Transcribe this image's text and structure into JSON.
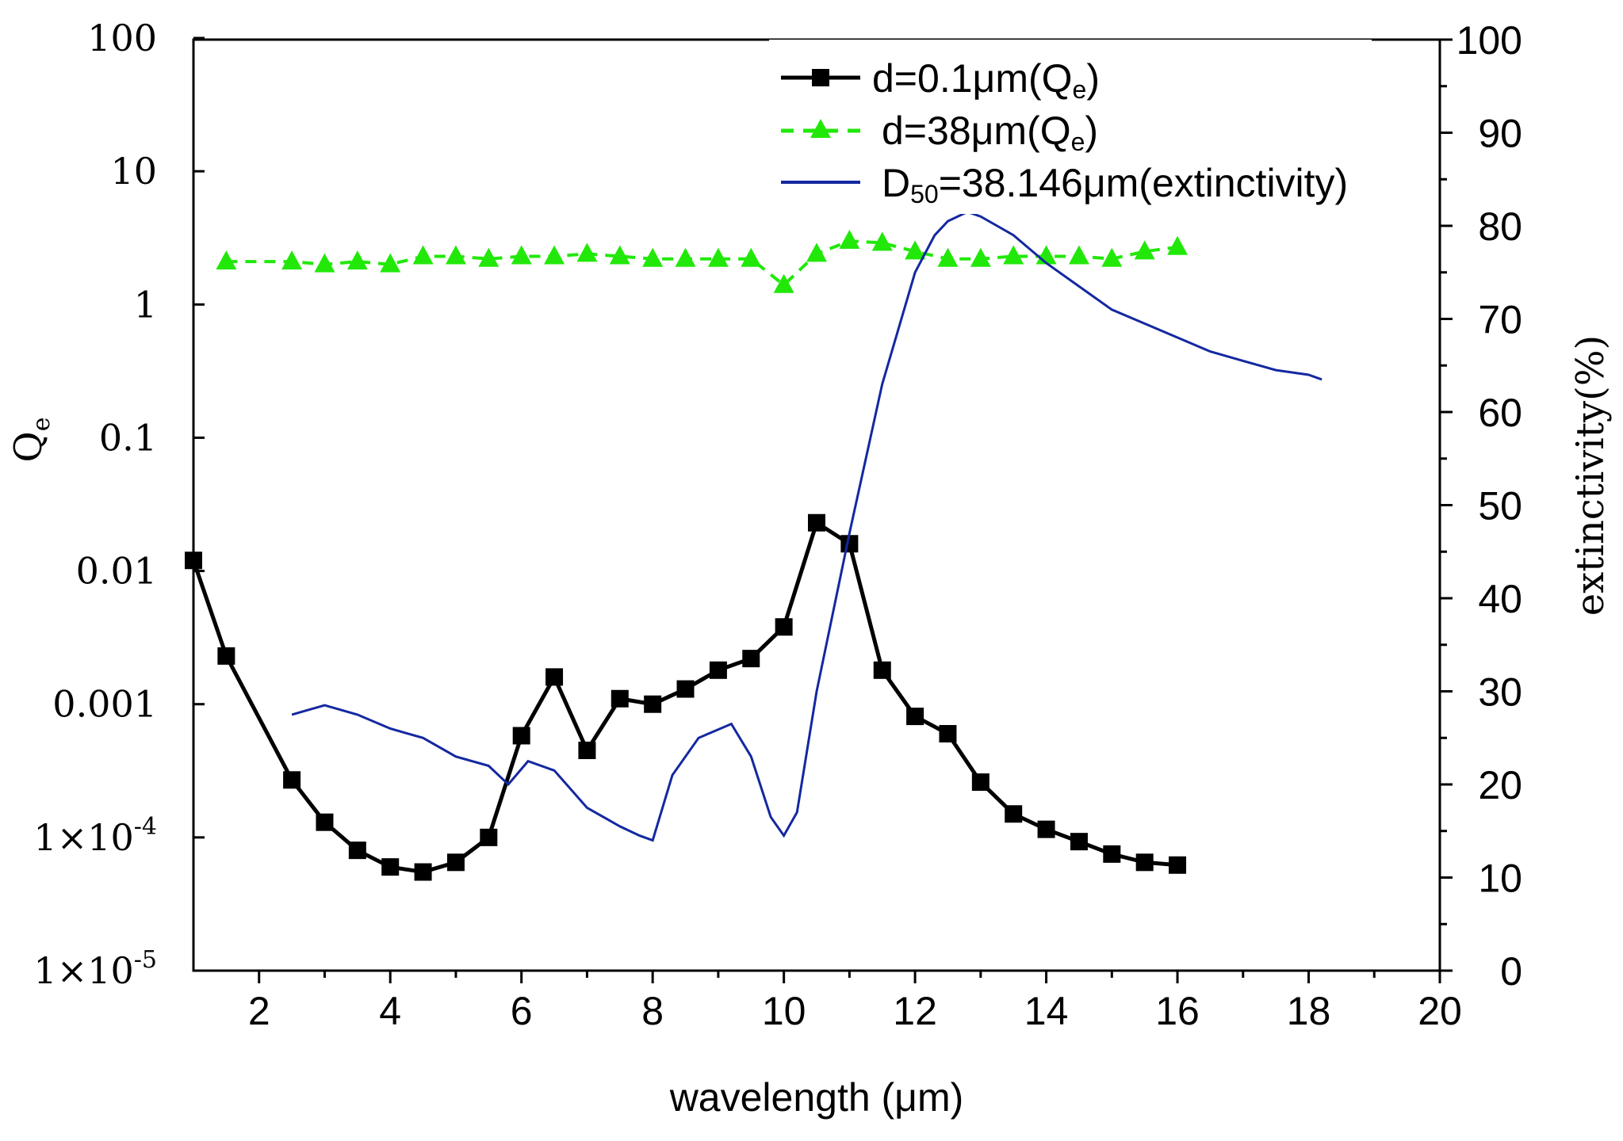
{
  "chart_data": {
    "type": "line",
    "title": "",
    "xlabel": "wavelength (μm)",
    "ylabel_left": "Q",
    "ylabel_left_subscript": "e",
    "ylabel_right": "extinctivity(%)",
    "xlim": [
      1,
      20
    ],
    "ylim_left": [
      1e-05,
      100
    ],
    "ylim_right": [
      0,
      100
    ],
    "y_left_scale": "log",
    "x_ticks": [
      2,
      4,
      6,
      8,
      10,
      12,
      14,
      16,
      18,
      20
    ],
    "x_tick_labels": [
      "2",
      "4",
      "6",
      "8",
      "10",
      "12",
      "14",
      "16",
      "18",
      "20"
    ],
    "y_left_ticks": [
      1e-05,
      0.0001,
      0.001,
      0.01,
      0.1,
      1,
      10,
      100
    ],
    "y_left_tick_labels": [
      "1×10",
      "1×10",
      "0.001",
      "0.01",
      "0.1",
      "1",
      "10",
      "100"
    ],
    "y_left_tick_superscripts": [
      "-5",
      "-4",
      "",
      "",
      "",
      "",
      "",
      ""
    ],
    "y_right_ticks": [
      0,
      10,
      20,
      30,
      40,
      50,
      60,
      70,
      80,
      90,
      100
    ],
    "y_right_tick_labels": [
      "0",
      "10",
      "20",
      "30",
      "40",
      "50",
      "60",
      "70",
      "80",
      "90",
      "100"
    ],
    "legend_position": "top-right",
    "series": [
      {
        "name": "d=0.1μm(Q",
        "name_subscript": "e",
        "name_suffix": ")",
        "axis": "left",
        "color": "#000000",
        "marker": "square",
        "x": [
          1,
          1.5,
          2.5,
          3,
          3.5,
          4,
          4.5,
          5,
          5.5,
          6,
          6.5,
          7,
          7.5,
          8,
          8.5,
          9,
          9.5,
          10,
          10.5,
          11,
          11.5,
          12,
          12.5,
          13,
          13.5,
          14,
          14.5,
          15,
          15.5,
          16
        ],
        "values": [
          0.012,
          0.0023,
          0.00027,
          0.00013,
          8e-05,
          6e-05,
          5.5e-05,
          6.5e-05,
          0.0001,
          0.00058,
          0.0016,
          0.00045,
          0.0011,
          0.001,
          0.0013,
          0.0018,
          0.0022,
          0.0038,
          0.023,
          0.016,
          0.0018,
          0.00081,
          0.0006,
          0.00026,
          0.00015,
          0.000115,
          9.3e-05,
          7.5e-05,
          6.5e-05,
          6.2e-05
        ]
      },
      {
        "name": "d=38μm(Q",
        "name_subscript": "e",
        "name_suffix": ")",
        "axis": "left",
        "color": "#22e80a",
        "marker": "triangle",
        "x": [
          1.5,
          2.5,
          3,
          3.5,
          4,
          4.5,
          5,
          5.5,
          6,
          6.5,
          7,
          7.5,
          8,
          8.5,
          9,
          9.5,
          10,
          10.5,
          11,
          11.5,
          12,
          12.5,
          13,
          13.5,
          14,
          14.5,
          15,
          15.5,
          16
        ],
        "values": [
          2.1,
          2.1,
          2.0,
          2.1,
          2.0,
          2.3,
          2.3,
          2.2,
          2.3,
          2.3,
          2.4,
          2.3,
          2.2,
          2.2,
          2.2,
          2.2,
          1.4,
          2.4,
          3.0,
          2.9,
          2.5,
          2.2,
          2.2,
          2.3,
          2.3,
          2.3,
          2.2,
          2.5,
          2.7
        ]
      },
      {
        "name": "D",
        "name_subscript": "50",
        "name_suffix": "=38.146μm(extinctivity)",
        "axis": "right",
        "color": "#1428a0",
        "marker": "none",
        "x": [
          2.5,
          3.0,
          3.5,
          4.0,
          4.5,
          5.0,
          5.5,
          5.8,
          6.1,
          6.5,
          7.0,
          7.5,
          7.8,
          8.0,
          8.3,
          8.7,
          9.2,
          9.5,
          9.8,
          10.0,
          10.2,
          10.5,
          11.0,
          11.5,
          12.0,
          12.3,
          12.5,
          12.8,
          13.0,
          13.5,
          14.0,
          14.5,
          15.0,
          15.5,
          16.0,
          16.5,
          17.0,
          17.5,
          18.0,
          18.2
        ],
        "values": [
          27.5,
          28.5,
          27.5,
          26.0,
          25.0,
          23.0,
          22.0,
          20.0,
          22.5,
          21.5,
          17.5,
          15.5,
          14.5,
          14.0,
          21.0,
          25.0,
          26.5,
          23.0,
          16.5,
          14.5,
          17.0,
          30.0,
          47.0,
          63.0,
          75.0,
          79.0,
          80.5,
          81.5,
          81.0,
          79.0,
          76.0,
          73.5,
          71.0,
          69.5,
          68.0,
          66.5,
          65.5,
          64.5,
          64.0,
          63.5
        ]
      }
    ]
  }
}
